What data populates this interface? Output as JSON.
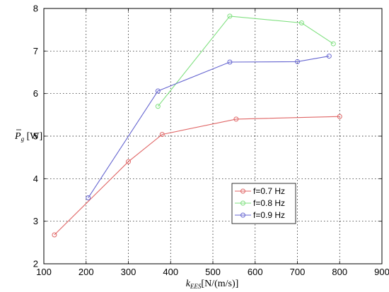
{
  "chart_data": {
    "type": "line",
    "xlabel_main": "k",
    "xlabel_sub": "EES",
    "xlabel_unit": "[N/(m/s)]",
    "ylabel_main": "P",
    "ylabel_sub": "g",
    "ylabel_unit": " [W]",
    "xlim": [
      100,
      900
    ],
    "ylim": [
      2,
      8
    ],
    "xticks": [
      100,
      200,
      300,
      400,
      500,
      600,
      700,
      800,
      900
    ],
    "yticks": [
      2,
      3,
      4,
      5,
      6,
      7,
      8
    ],
    "grid": true,
    "legend_position": "lower-right",
    "series": [
      {
        "name": "f=0.7 Hz",
        "color": "#e06666",
        "points": [
          [
            125,
            2.68
          ],
          [
            300,
            4.4
          ],
          [
            380,
            5.04
          ],
          [
            555,
            5.4
          ],
          [
            800,
            5.46
          ]
        ]
      },
      {
        "name": "f=0.8 Hz",
        "color": "#7fe07f",
        "points": [
          [
            370,
            5.7
          ],
          [
            540,
            7.82
          ],
          [
            710,
            7.66
          ],
          [
            785,
            7.17
          ]
        ]
      },
      {
        "name": "f=0.9 Hz",
        "color": "#6666d0",
        "points": [
          [
            205,
            3.55
          ],
          [
            370,
            6.06
          ],
          [
            540,
            6.74
          ],
          [
            700,
            6.75
          ],
          [
            775,
            6.88
          ]
        ]
      }
    ]
  }
}
